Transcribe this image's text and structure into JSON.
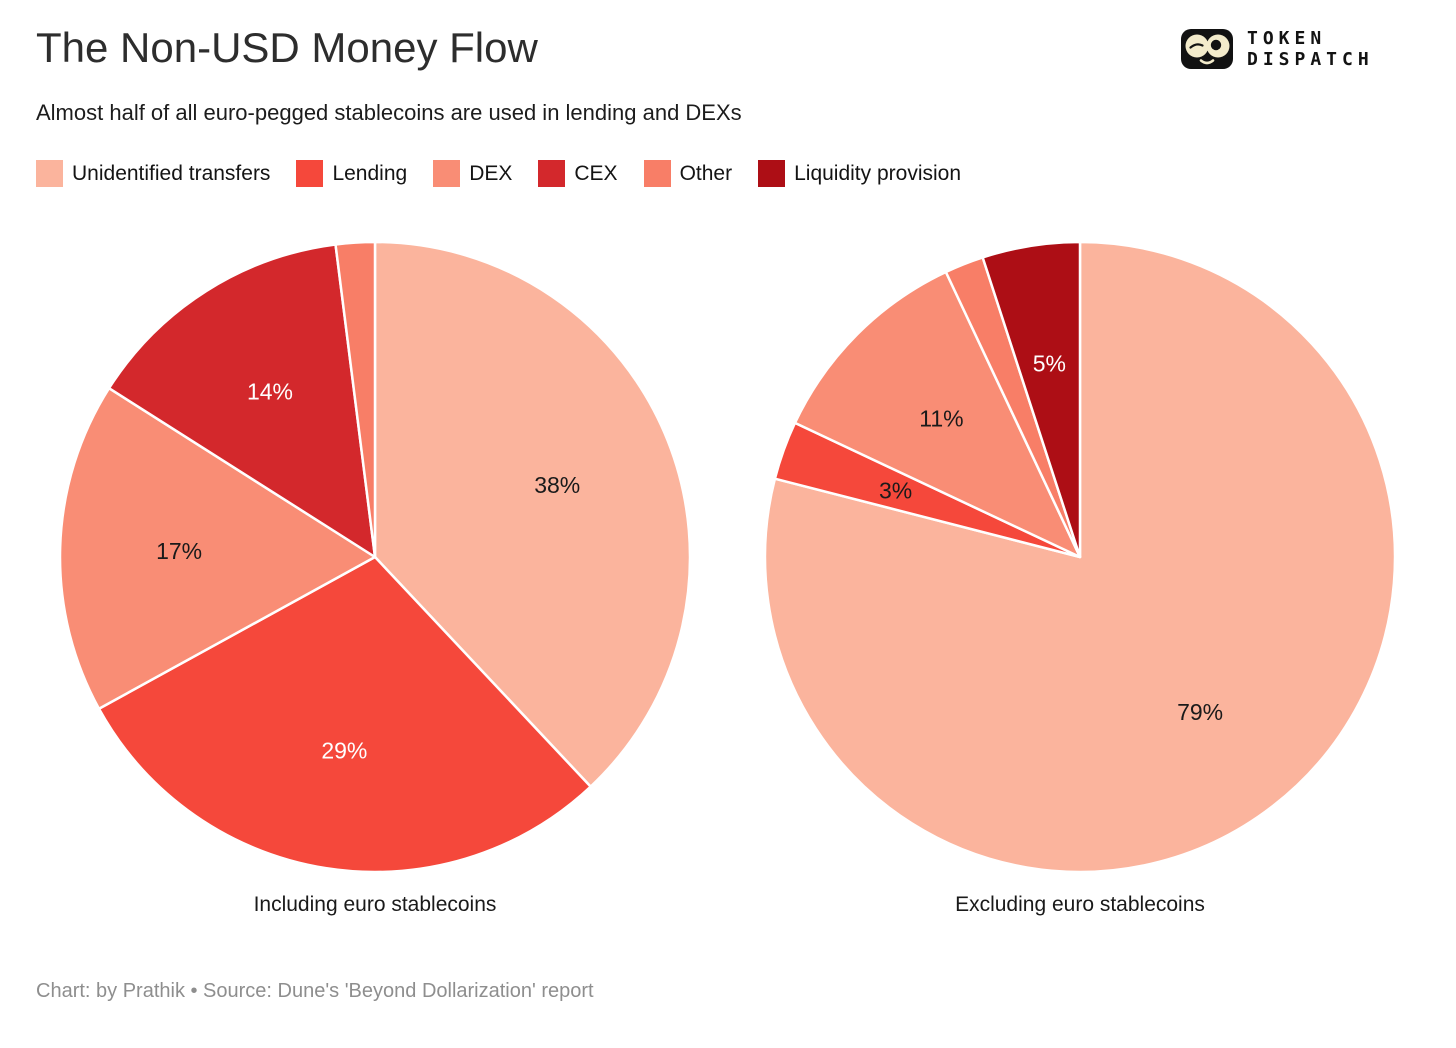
{
  "header": {
    "title": "The Non-USD Money Flow",
    "subtitle": "Almost half of all euro-pegged stablecoins are used in lending and DEXs"
  },
  "logo": {
    "line1": "TOKEN",
    "line2": "DISPATCH"
  },
  "palette": {
    "unidentified_transfers": "#FBB49D",
    "lending": "#F5483B",
    "dex": "#F98D75",
    "cex": "#D3282C",
    "other": "#F87E67",
    "liquidity_provision": "#AD0E15"
  },
  "legend": [
    {
      "label": "Unidentified transfers",
      "color": "#FBB49D"
    },
    {
      "label": "Lending",
      "color": "#F5483B"
    },
    {
      "label": "DEX",
      "color": "#F98D75"
    },
    {
      "label": "CEX",
      "color": "#D3282C"
    },
    {
      "label": "Other",
      "color": "#F87E67"
    },
    {
      "label": "Liquidity provision",
      "color": "#AD0E15"
    }
  ],
  "chart_data": [
    {
      "type": "pie",
      "title": "Including euro stablecoins",
      "start_angle_deg": 0,
      "direction": "clockwise",
      "slices": [
        {
          "label": "Unidentified transfers",
          "value": 38,
          "display": "38%",
          "color": "#FBB49D",
          "label_color": "#1a1a1a"
        },
        {
          "label": "Lending",
          "value": 29,
          "display": "29%",
          "color": "#F5483B",
          "label_color": "#ffffff"
        },
        {
          "label": "DEX",
          "value": 17,
          "display": "17%",
          "color": "#F98D75",
          "label_color": "#1a1a1a"
        },
        {
          "label": "CEX",
          "value": 14,
          "display": "14%",
          "color": "#D3282C",
          "label_color": "#ffffff"
        },
        {
          "label": "Other",
          "value": 2,
          "display": "",
          "color": "#F87E67",
          "label_color": "#1a1a1a"
        }
      ]
    },
    {
      "type": "pie",
      "title": "Excluding euro stablecoins",
      "start_angle_deg": 0,
      "direction": "clockwise",
      "slices": [
        {
          "label": "Unidentified transfers",
          "value": 79,
          "display": "79%",
          "color": "#FBB49D",
          "label_color": "#1a1a1a"
        },
        {
          "label": "Lending",
          "value": 3,
          "display": "3%",
          "color": "#F5483B",
          "label_color": "#1a1a1a"
        },
        {
          "label": "DEX",
          "value": 11,
          "display": "11%",
          "color": "#F98D75",
          "label_color": "#1a1a1a"
        },
        {
          "label": "Other",
          "value": 2,
          "display": "",
          "color": "#F87E67",
          "label_color": "#1a1a1a"
        },
        {
          "label": "Liquidity provision",
          "value": 5,
          "display": "5%",
          "color": "#AD0E15",
          "label_color": "#ffffff"
        }
      ]
    }
  ],
  "footer": {
    "caption": "Chart: by Prathik • Source: Dune's 'Beyond Dollarization' report"
  }
}
